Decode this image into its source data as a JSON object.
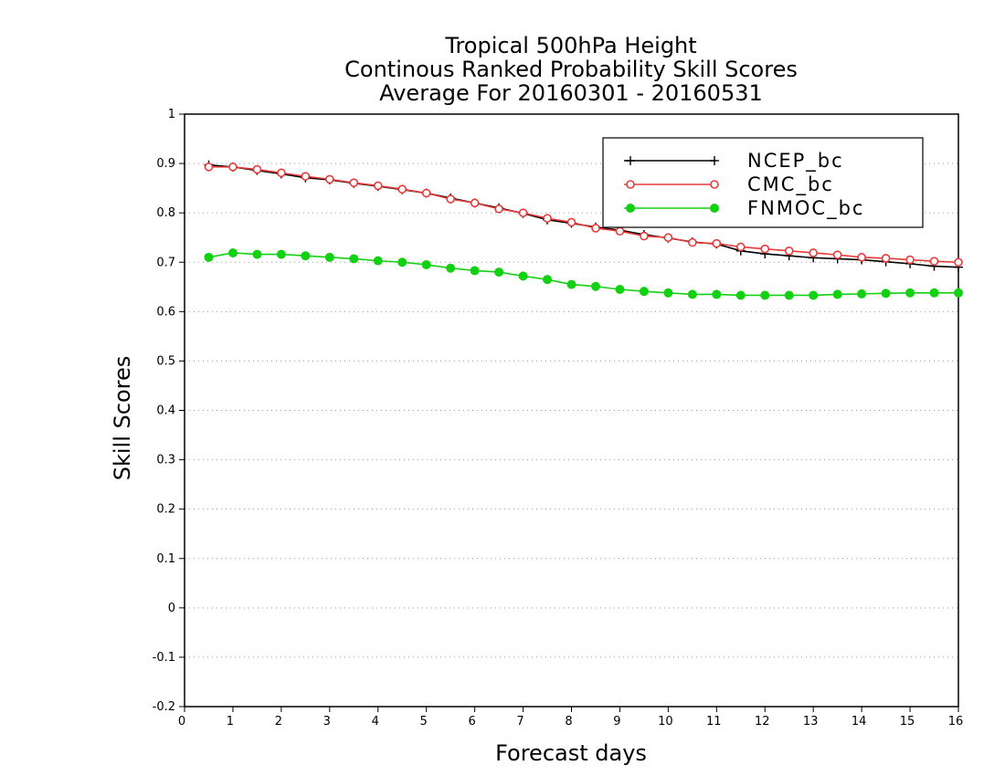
{
  "chart_data": {
    "type": "line",
    "title": [
      "Tropical 500hPa Height",
      "Continous Ranked Probability Skill Scores",
      "Average For 20160301 - 20160531"
    ],
    "xlabel": "Forecast days",
    "ylabel": "Skill Scores",
    "xlim": [
      0,
      16
    ],
    "ylim": [
      -0.2,
      1
    ],
    "xticks": [
      "0",
      "1",
      "2",
      "3",
      "4",
      "5",
      "6",
      "7",
      "8",
      "9",
      "10",
      "11",
      "12",
      "13",
      "14",
      "15",
      "16"
    ],
    "yticks": [
      "-0.2",
      "-0.1",
      "0",
      "0.1",
      "0.2",
      "0.3",
      "0.4",
      "0.5",
      "0.6",
      "0.7",
      "0.8",
      "0.9",
      "1"
    ],
    "grid": "horizontal dotted",
    "legend_position": "top-right",
    "x": [
      0.5,
      1,
      1.5,
      2,
      2.5,
      3,
      3.5,
      4,
      4.5,
      5,
      5.5,
      6,
      6.5,
      7,
      7.5,
      8,
      8.5,
      9,
      9.5,
      10,
      10.5,
      11,
      11.5,
      12,
      12.5,
      13,
      13.5,
      14,
      14.5,
      15,
      15.5,
      16
    ],
    "series": [
      {
        "name": "NCEP_bc",
        "color": "#000000",
        "marker": "plus",
        "values": [
          0.897,
          0.893,
          0.886,
          0.879,
          0.871,
          0.867,
          0.86,
          0.854,
          0.847,
          0.84,
          0.83,
          0.82,
          0.81,
          0.799,
          0.786,
          0.779,
          0.771,
          0.765,
          0.756,
          0.749,
          0.741,
          0.737,
          0.723,
          0.717,
          0.713,
          0.709,
          0.707,
          0.705,
          0.701,
          0.697,
          0.692,
          0.69
        ]
      },
      {
        "name": "CMC_bc",
        "color": "#e83a3a",
        "marker": "open-circle",
        "values": [
          0.893,
          0.893,
          0.888,
          0.881,
          0.874,
          0.868,
          0.861,
          0.855,
          0.848,
          0.84,
          0.828,
          0.82,
          0.808,
          0.8,
          0.789,
          0.781,
          0.769,
          0.763,
          0.753,
          0.75,
          0.74,
          0.738,
          0.731,
          0.727,
          0.723,
          0.719,
          0.715,
          0.71,
          0.708,
          0.705,
          0.702,
          0.7
        ]
      },
      {
        "name": "FNMOC_bc",
        "color": "#12d012",
        "marker": "filled-circle",
        "values": [
          0.71,
          0.719,
          0.716,
          0.716,
          0.713,
          0.71,
          0.707,
          0.703,
          0.7,
          0.695,
          0.688,
          0.683,
          0.68,
          0.672,
          0.665,
          0.655,
          0.651,
          0.645,
          0.641,
          0.638,
          0.635,
          0.635,
          0.633,
          0.633,
          0.633,
          0.633,
          0.635,
          0.636,
          0.637,
          0.638,
          0.638,
          0.638
        ]
      }
    ]
  }
}
